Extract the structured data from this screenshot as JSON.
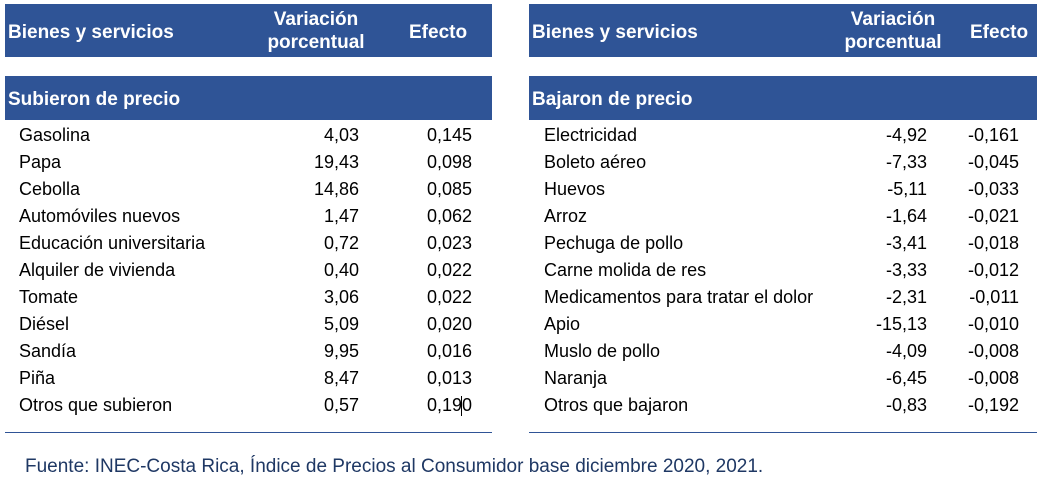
{
  "left": {
    "header": {
      "col1": "Bienes y servicios",
      "col2": "Variación porcentual",
      "col3": "Efecto"
    },
    "section": "Subieron de precio",
    "rows": [
      {
        "name": "Gasolina",
        "var": "4,03",
        "eff": "0,145"
      },
      {
        "name": "Papa",
        "var": "19,43",
        "eff": "0,098"
      },
      {
        "name": "Cebolla",
        "var": "14,86",
        "eff": "0,085"
      },
      {
        "name": "Automóviles nuevos",
        "var": "1,47",
        "eff": "0,062"
      },
      {
        "name": "Educación universitaria",
        "var": "0,72",
        "eff": "0,023"
      },
      {
        "name": "Alquiler de vivienda",
        "var": "0,40",
        "eff": "0,022"
      },
      {
        "name": "Tomate",
        "var": "3,06",
        "eff": "0,022"
      },
      {
        "name": "Diésel",
        "var": "5,09",
        "eff": "0,020"
      },
      {
        "name": "Sandía",
        "var": "9,95",
        "eff": "0,016"
      },
      {
        "name": "Piña",
        "var": "8,47",
        "eff": "0,013"
      },
      {
        "name": "Otros que subieron",
        "var": "0,57",
        "eff": "0,190"
      }
    ]
  },
  "right": {
    "header": {
      "col1": "Bienes y servicios",
      "col2": "Variación porcentual",
      "col3": "Efecto"
    },
    "section": "Bajaron de precio",
    "rows": [
      {
        "name": "Electricidad",
        "var": "-4,92",
        "eff": "-0,161"
      },
      {
        "name": "Boleto aéreo",
        "var": "-7,33",
        "eff": "-0,045"
      },
      {
        "name": "Huevos",
        "var": "-5,11",
        "eff": "-0,033"
      },
      {
        "name": "Arroz",
        "var": "-1,64",
        "eff": "-0,021"
      },
      {
        "name": "Pechuga de pollo",
        "var": "-3,41",
        "eff": "-0,018"
      },
      {
        "name": "Carne molida de res",
        "var": "-3,33",
        "eff": "-0,012"
      },
      {
        "name": "Medicamentos para tratar el dolor",
        "var": "-2,31",
        "eff": "-0,011"
      },
      {
        "name": "Apio",
        "var": "-15,13",
        "eff": "-0,010"
      },
      {
        "name": "Muslo de pollo",
        "var": "-4,09",
        "eff": "-0,008"
      },
      {
        "name": "Naranja",
        "var": "-6,45",
        "eff": "-0,008"
      },
      {
        "name": "Otros que bajaron",
        "var": "-0,83",
        "eff": "-0,192"
      }
    ]
  },
  "source": "Fuente: INEC-Costa Rica, Índice de Precios al Consumidor base diciembre 2020, 2021.",
  "colors": {
    "header_bg": "#2f5496",
    "source_text": "#1f3864"
  }
}
